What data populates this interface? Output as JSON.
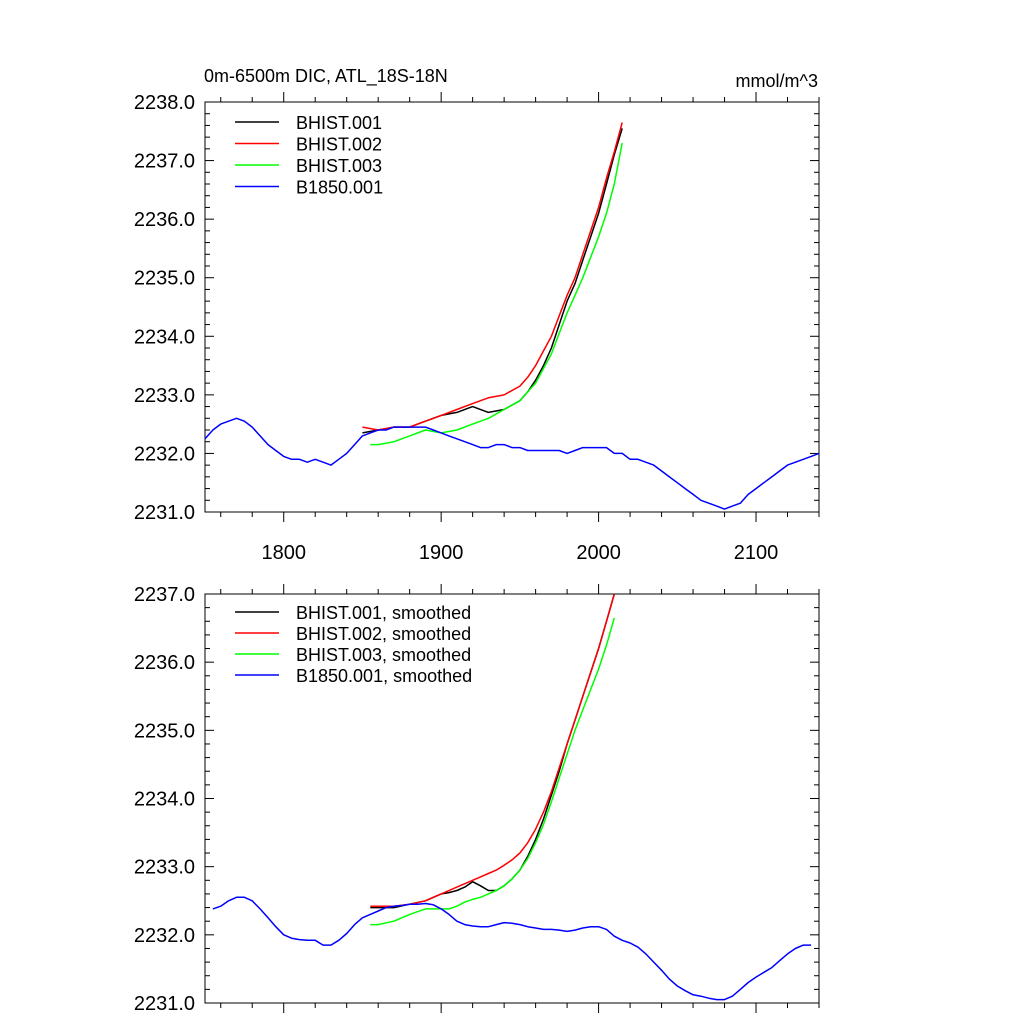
{
  "chart_data": [
    {
      "type": "line",
      "title": "0m-6500m DIC, ATL_18S-18N",
      "units": "mmol/m^3",
      "xlim": [
        1750,
        2140
      ],
      "ylim": [
        2231.0,
        2238.0
      ],
      "x_ticks": [
        1800,
        1900,
        2000,
        2100
      ],
      "x_tick_labels": [
        "1800",
        "1900",
        "2000",
        "2100"
      ],
      "y_ticks": [
        2231.0,
        2232.0,
        2233.0,
        2234.0,
        2235.0,
        2236.0,
        2237.0,
        2238.0
      ],
      "y_tick_labels": [
        "2231.0",
        "2232.0",
        "2233.0",
        "2234.0",
        "2235.0",
        "2236.0",
        "2237.0",
        "2238.0"
      ],
      "legend_position": "top-left",
      "series": [
        {
          "name": "BHIST.001",
          "color": "#000000",
          "x": [
            1850,
            1860,
            1870,
            1880,
            1890,
            1900,
            1910,
            1920,
            1930,
            1940,
            1950,
            1955,
            1960,
            1965,
            1970,
            1975,
            1980,
            1985,
            1990,
            1995,
            2000,
            2005,
            2010,
            2015
          ],
          "y": [
            2232.35,
            2232.4,
            2232.45,
            2232.45,
            2232.55,
            2232.65,
            2232.7,
            2232.8,
            2232.7,
            2232.75,
            2232.9,
            2233.05,
            2233.25,
            2233.5,
            2233.8,
            2234.2,
            2234.6,
            2234.9,
            2235.3,
            2235.7,
            2236.1,
            2236.6,
            2237.1,
            2237.55
          ]
        },
        {
          "name": "BHIST.002",
          "color": "#ff0000",
          "x": [
            1850,
            1860,
            1870,
            1880,
            1890,
            1900,
            1910,
            1920,
            1930,
            1940,
            1950,
            1955,
            1960,
            1965,
            1970,
            1975,
            1980,
            1985,
            1990,
            1995,
            2000,
            2005,
            2010,
            2015
          ],
          "y": [
            2232.45,
            2232.4,
            2232.45,
            2232.45,
            2232.55,
            2232.65,
            2232.75,
            2232.85,
            2232.95,
            2233.0,
            2233.15,
            2233.3,
            2233.5,
            2233.75,
            2234.0,
            2234.35,
            2234.7,
            2235.0,
            2235.4,
            2235.8,
            2236.2,
            2236.7,
            2237.15,
            2237.65
          ]
        },
        {
          "name": "BHIST.003",
          "color": "#00ff00",
          "x": [
            1855,
            1860,
            1870,
            1880,
            1890,
            1900,
            1910,
            1920,
            1930,
            1940,
            1950,
            1955,
            1960,
            1965,
            1970,
            1975,
            1980,
            1985,
            1990,
            1995,
            2000,
            2005,
            2010,
            2015
          ],
          "y": [
            2232.15,
            2232.15,
            2232.2,
            2232.3,
            2232.4,
            2232.35,
            2232.4,
            2232.5,
            2232.6,
            2232.75,
            2232.9,
            2233.05,
            2233.2,
            2233.45,
            2233.7,
            2234.05,
            2234.4,
            2234.7,
            2235.0,
            2235.35,
            2235.7,
            2236.1,
            2236.6,
            2237.3
          ]
        },
        {
          "name": "B1850.001",
          "color": "#0000ff",
          "x": [
            1750,
            1755,
            1760,
            1765,
            1770,
            1775,
            1780,
            1785,
            1790,
            1795,
            1800,
            1805,
            1810,
            1815,
            1820,
            1825,
            1830,
            1835,
            1840,
            1845,
            1850,
            1855,
            1860,
            1865,
            1870,
            1875,
            1880,
            1885,
            1890,
            1895,
            1900,
            1905,
            1910,
            1915,
            1920,
            1925,
            1930,
            1935,
            1940,
            1945,
            1950,
            1955,
            1960,
            1965,
            1970,
            1975,
            1980,
            1985,
            1990,
            1995,
            2000,
            2005,
            2010,
            2015,
            2020,
            2025,
            2030,
            2035,
            2040,
            2045,
            2050,
            2055,
            2060,
            2065,
            2070,
            2075,
            2080,
            2085,
            2090,
            2095,
            2100,
            2105,
            2110,
            2115,
            2120,
            2125,
            2130,
            2135,
            2140
          ],
          "y": [
            2232.25,
            2232.4,
            2232.5,
            2232.55,
            2232.6,
            2232.55,
            2232.45,
            2232.3,
            2232.15,
            2232.05,
            2231.95,
            2231.9,
            2231.9,
            2231.85,
            2231.9,
            2231.85,
            2231.8,
            2231.9,
            2232.0,
            2232.15,
            2232.3,
            2232.35,
            2232.4,
            2232.4,
            2232.45,
            2232.45,
            2232.45,
            2232.45,
            2232.45,
            2232.4,
            2232.35,
            2232.3,
            2232.25,
            2232.2,
            2232.15,
            2232.1,
            2232.1,
            2232.15,
            2232.15,
            2232.1,
            2232.1,
            2232.05,
            2232.05,
            2232.05,
            2232.05,
            2232.05,
            2232.0,
            2232.05,
            2232.1,
            2232.1,
            2232.1,
            2232.1,
            2232.0,
            2232.0,
            2231.9,
            2231.9,
            2231.85,
            2231.8,
            2231.7,
            2231.6,
            2231.5,
            2231.4,
            2231.3,
            2231.2,
            2231.15,
            2231.1,
            2231.05,
            2231.1,
            2231.15,
            2231.3,
            2231.4,
            2231.5,
            2231.6,
            2231.7,
            2231.8,
            2231.85,
            2231.9,
            2231.95,
            2232.0
          ]
        }
      ]
    },
    {
      "type": "line",
      "xlim": [
        1750,
        2140
      ],
      "ylim": [
        2231.0,
        2237.0
      ],
      "x_ticks": [
        1800,
        1900,
        2000,
        2100
      ],
      "y_ticks": [
        2231.0,
        2232.0,
        2233.0,
        2234.0,
        2235.0,
        2236.0,
        2237.0
      ],
      "y_tick_labels": [
        "2231.0",
        "2232.0",
        "2233.0",
        "2234.0",
        "2235.0",
        "2236.0",
        "2237.0"
      ],
      "legend_position": "top-left",
      "series": [
        {
          "name": "BHIST.001, smoothed",
          "color": "#000000",
          "x": [
            1855,
            1860,
            1870,
            1880,
            1890,
            1900,
            1905,
            1910,
            1915,
            1920,
            1925,
            1930,
            1935,
            1940,
            1945,
            1950,
            1955,
            1960,
            1965,
            1970,
            1975,
            1980,
            1985,
            1990,
            1995,
            2000,
            2005,
            2010
          ],
          "y": [
            2232.4,
            2232.4,
            2232.4,
            2232.45,
            2232.5,
            2232.6,
            2232.62,
            2232.65,
            2232.7,
            2232.78,
            2232.72,
            2232.65,
            2232.65,
            2232.72,
            2232.82,
            2232.95,
            2233.15,
            2233.4,
            2233.7,
            2234.05,
            2234.4,
            2234.8,
            2235.15,
            2235.5,
            2235.85,
            2236.2,
            2236.6,
            2237.0
          ]
        },
        {
          "name": "BHIST.002, smoothed",
          "color": "#ff0000",
          "x": [
            1855,
            1860,
            1870,
            1880,
            1890,
            1900,
            1905,
            1910,
            1915,
            1920,
            1925,
            1930,
            1935,
            1940,
            1945,
            1950,
            1955,
            1960,
            1965,
            1970,
            1975,
            1980,
            1985,
            1990,
            1995,
            2000,
            2005,
            2010
          ],
          "y": [
            2232.42,
            2232.42,
            2232.42,
            2232.45,
            2232.5,
            2232.6,
            2232.65,
            2232.7,
            2232.75,
            2232.8,
            2232.85,
            2232.9,
            2232.95,
            2233.02,
            2233.1,
            2233.2,
            2233.35,
            2233.55,
            2233.8,
            2234.1,
            2234.45,
            2234.8,
            2235.15,
            2235.5,
            2235.85,
            2236.2,
            2236.6,
            2237.0
          ]
        },
        {
          "name": "BHIST.003, smoothed",
          "color": "#00ff00",
          "x": [
            1855,
            1860,
            1870,
            1880,
            1890,
            1900,
            1905,
            1910,
            1915,
            1920,
            1925,
            1930,
            1935,
            1940,
            1945,
            1950,
            1955,
            1960,
            1965,
            1970,
            1975,
            1980,
            1985,
            1990,
            1995,
            2000,
            2005,
            2010
          ],
          "y": [
            2232.15,
            2232.15,
            2232.2,
            2232.3,
            2232.38,
            2232.38,
            2232.38,
            2232.42,
            2232.48,
            2232.52,
            2232.55,
            2232.6,
            2232.65,
            2232.72,
            2232.82,
            2232.95,
            2233.12,
            2233.35,
            2233.62,
            2233.95,
            2234.3,
            2234.65,
            2235.0,
            2235.3,
            2235.6,
            2235.9,
            2236.25,
            2236.65
          ]
        },
        {
          "name": "B1850.001, smoothed",
          "color": "#0000ff",
          "x": [
            1755,
            1760,
            1765,
            1770,
            1775,
            1780,
            1785,
            1790,
            1795,
            1800,
            1805,
            1810,
            1815,
            1820,
            1825,
            1830,
            1835,
            1840,
            1845,
            1850,
            1855,
            1860,
            1865,
            1870,
            1875,
            1880,
            1885,
            1890,
            1895,
            1900,
            1905,
            1910,
            1915,
            1920,
            1925,
            1930,
            1935,
            1940,
            1945,
            1950,
            1955,
            1960,
            1965,
            1970,
            1975,
            1980,
            1985,
            1990,
            1995,
            2000,
            2005,
            2010,
            2015,
            2020,
            2025,
            2030,
            2035,
            2040,
            2045,
            2050,
            2055,
            2060,
            2065,
            2070,
            2075,
            2080,
            2085,
            2090,
            2095,
            2100,
            2105,
            2110,
            2115,
            2120,
            2125,
            2130,
            2135
          ],
          "y": [
            2232.38,
            2232.42,
            2232.5,
            2232.55,
            2232.55,
            2232.5,
            2232.38,
            2232.25,
            2232.12,
            2232.0,
            2231.95,
            2231.93,
            2231.92,
            2231.92,
            2231.85,
            2231.85,
            2231.92,
            2232.02,
            2232.15,
            2232.25,
            2232.3,
            2232.35,
            2232.4,
            2232.42,
            2232.43,
            2232.45,
            2232.45,
            2232.46,
            2232.44,
            2232.38,
            2232.3,
            2232.2,
            2232.15,
            2232.13,
            2232.12,
            2232.12,
            2232.15,
            2232.18,
            2232.17,
            2232.15,
            2232.12,
            2232.1,
            2232.08,
            2232.08,
            2232.07,
            2232.05,
            2232.07,
            2232.1,
            2232.12,
            2232.12,
            2232.08,
            2231.98,
            2231.92,
            2231.88,
            2231.82,
            2231.72,
            2231.6,
            2231.48,
            2231.35,
            2231.25,
            2231.18,
            2231.12,
            2231.1,
            2231.07,
            2231.05,
            2231.05,
            2231.1,
            2231.2,
            2231.3,
            2231.38,
            2231.45,
            2231.52,
            2231.62,
            2231.72,
            2231.8,
            2231.85,
            2231.85
          ]
        }
      ]
    }
  ]
}
